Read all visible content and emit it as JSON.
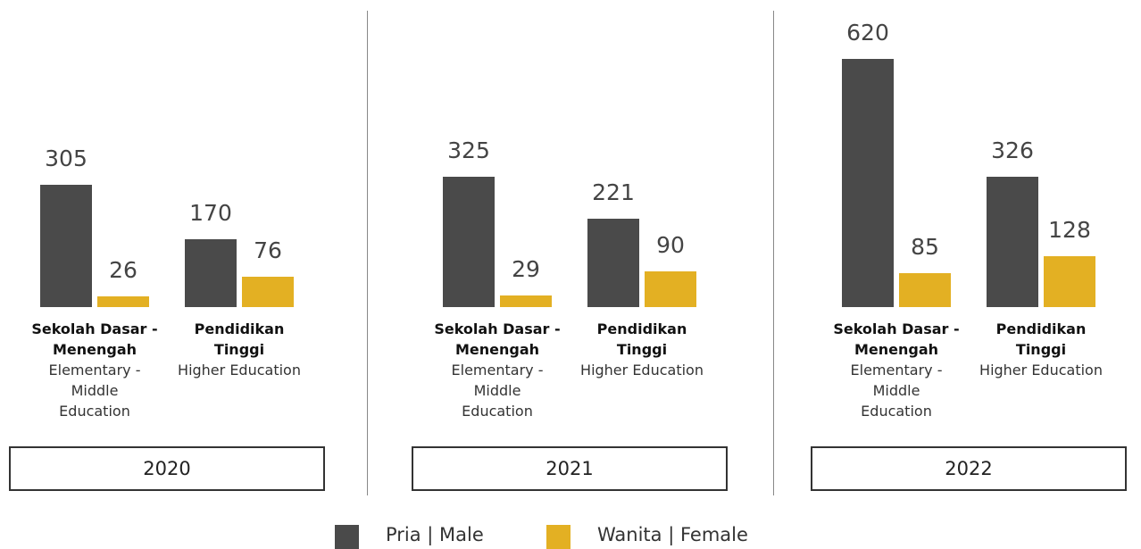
{
  "chart_data": [
    {
      "type": "bar",
      "title": "2020",
      "ylim": [
        0,
        620
      ],
      "categories": [
        "Sekolah Dasar - Menengah",
        "Pendidikan Tinggi"
      ],
      "category_subtitles": [
        "Elementary - Middle Education",
        "Higher Education"
      ],
      "series": [
        {
          "values": [
            305,
            170
          ]
        },
        {
          "values": [
            26,
            76
          ]
        }
      ]
    },
    {
      "type": "bar",
      "title": "2021",
      "ylim": [
        0,
        620
      ],
      "categories": [
        "Sekolah Dasar - Menengah",
        "Pendidikan Tinggi"
      ],
      "category_subtitles": [
        "Elementary - Middle Education",
        "Higher Education"
      ],
      "series": [
        {
          "values": [
            325,
            221
          ]
        },
        {
          "values": [
            29,
            90
          ]
        }
      ]
    },
    {
      "type": "bar",
      "title": "2022",
      "ylim": [
        0,
        620
      ],
      "categories": [
        "Sekolah Dasar - Menengah",
        "Pendidikan Tinggi"
      ],
      "category_subtitles": [
        "Elementary - Middle Education",
        "Higher Education"
      ],
      "series": [
        {
          "values": [
            620,
            326
          ]
        },
        {
          "values": [
            85,
            128
          ]
        }
      ]
    }
  ],
  "legend": [
    {
      "name": "Pria | Male",
      "color": "#4a4a4a"
    },
    {
      "name": "Wanita | Female",
      "color": "#e3b023"
    }
  ]
}
